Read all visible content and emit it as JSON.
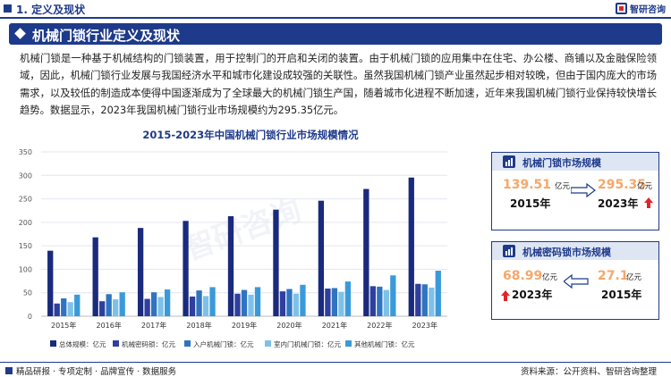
{
  "header": {
    "section_title": "1. 定义及现状",
    "logo_text": "智研咨询"
  },
  "banner": {
    "title": "机械门锁行业定义及现状"
  },
  "body_text": "机械门锁是一种基于机械结构的门锁装置，用于控制门的开启和关闭的装置。由于机械门锁的应用集中在住宅、办公楼、商铺以及金融保险领域，因此，机械门锁行业发展与我国经济水平和城市化建设成较强的关联性。虽然我国机械门锁产业虽然起步相对较晚，但由于国内庞大的市场需求，以及较低的制造成本使得中国逐渐成为了全球最大的机械门锁生产国，随着城市化进程不断加速，近年来我国机械门锁行业保持较快增长趋势。数据显示，2023年我国机械门锁行业市场规模约为295.35亿元。",
  "colors": {
    "primary": "#1e3a8a",
    "accent_orange": "#f5a76a",
    "arrow_red": "#e0262b"
  },
  "chart_data": {
    "type": "bar",
    "title": "2015-2023年中国机械门锁行业市场规模情况",
    "categories": [
      "2015年",
      "2016年",
      "2017年",
      "2018年",
      "2019年",
      "2020年",
      "2021年",
      "2022年",
      "2023年"
    ],
    "ylim": [
      0,
      350
    ],
    "yticks": [
      "0",
      "50",
      "100",
      "150",
      "200",
      "250",
      "300",
      "350"
    ],
    "grid": true,
    "legend_position": "bottom",
    "series": [
      {
        "name": "总体规模：亿元",
        "color": "#1a2a7c",
        "values": [
          139.51,
          168,
          188,
          203,
          213,
          227,
          246,
          271,
          295.35
        ]
      },
      {
        "name": "机械密码锁：亿元",
        "color": "#2e3f9e",
        "values": [
          27.1,
          32,
          37,
          42,
          48,
          53,
          59,
          64,
          68.99
        ]
      },
      {
        "name": "入户机械门锁：亿元",
        "color": "#2f74c0",
        "values": [
          38,
          47,
          51,
          55,
          56,
          58,
          60,
          63,
          68
        ]
      },
      {
        "name": "室内门机械门锁：亿元",
        "color": "#7ec1e8",
        "values": [
          30,
          36,
          41,
          43,
          46,
          48,
          52,
          56,
          61
        ]
      },
      {
        "name": "其他机械门锁：亿元",
        "color": "#3a9ad9",
        "values": [
          46,
          51,
          57,
          62,
          62,
          67,
          74,
          87,
          97
        ]
      }
    ],
    "watermark": "智研咨询"
  },
  "card_mechanical": {
    "label": "机械门锁市场规模",
    "from_value": "139.51",
    "from_unit": "亿元",
    "from_year": "2015年",
    "to_value": "295.35",
    "to_unit": "亿元",
    "to_year": "2023年"
  },
  "card_password": {
    "label": "机械密码锁市场规模",
    "left_value": "68.99",
    "left_unit": "亿元",
    "left_year": "2023年",
    "right_value": "27.1",
    "right_unit": "亿元",
    "right_year": "2015年"
  },
  "footer": {
    "left": "精品研报 · 专项定制 · 品牌宣传 · 数据服务",
    "right": "资料来源：公开资料、智研咨询整理"
  }
}
